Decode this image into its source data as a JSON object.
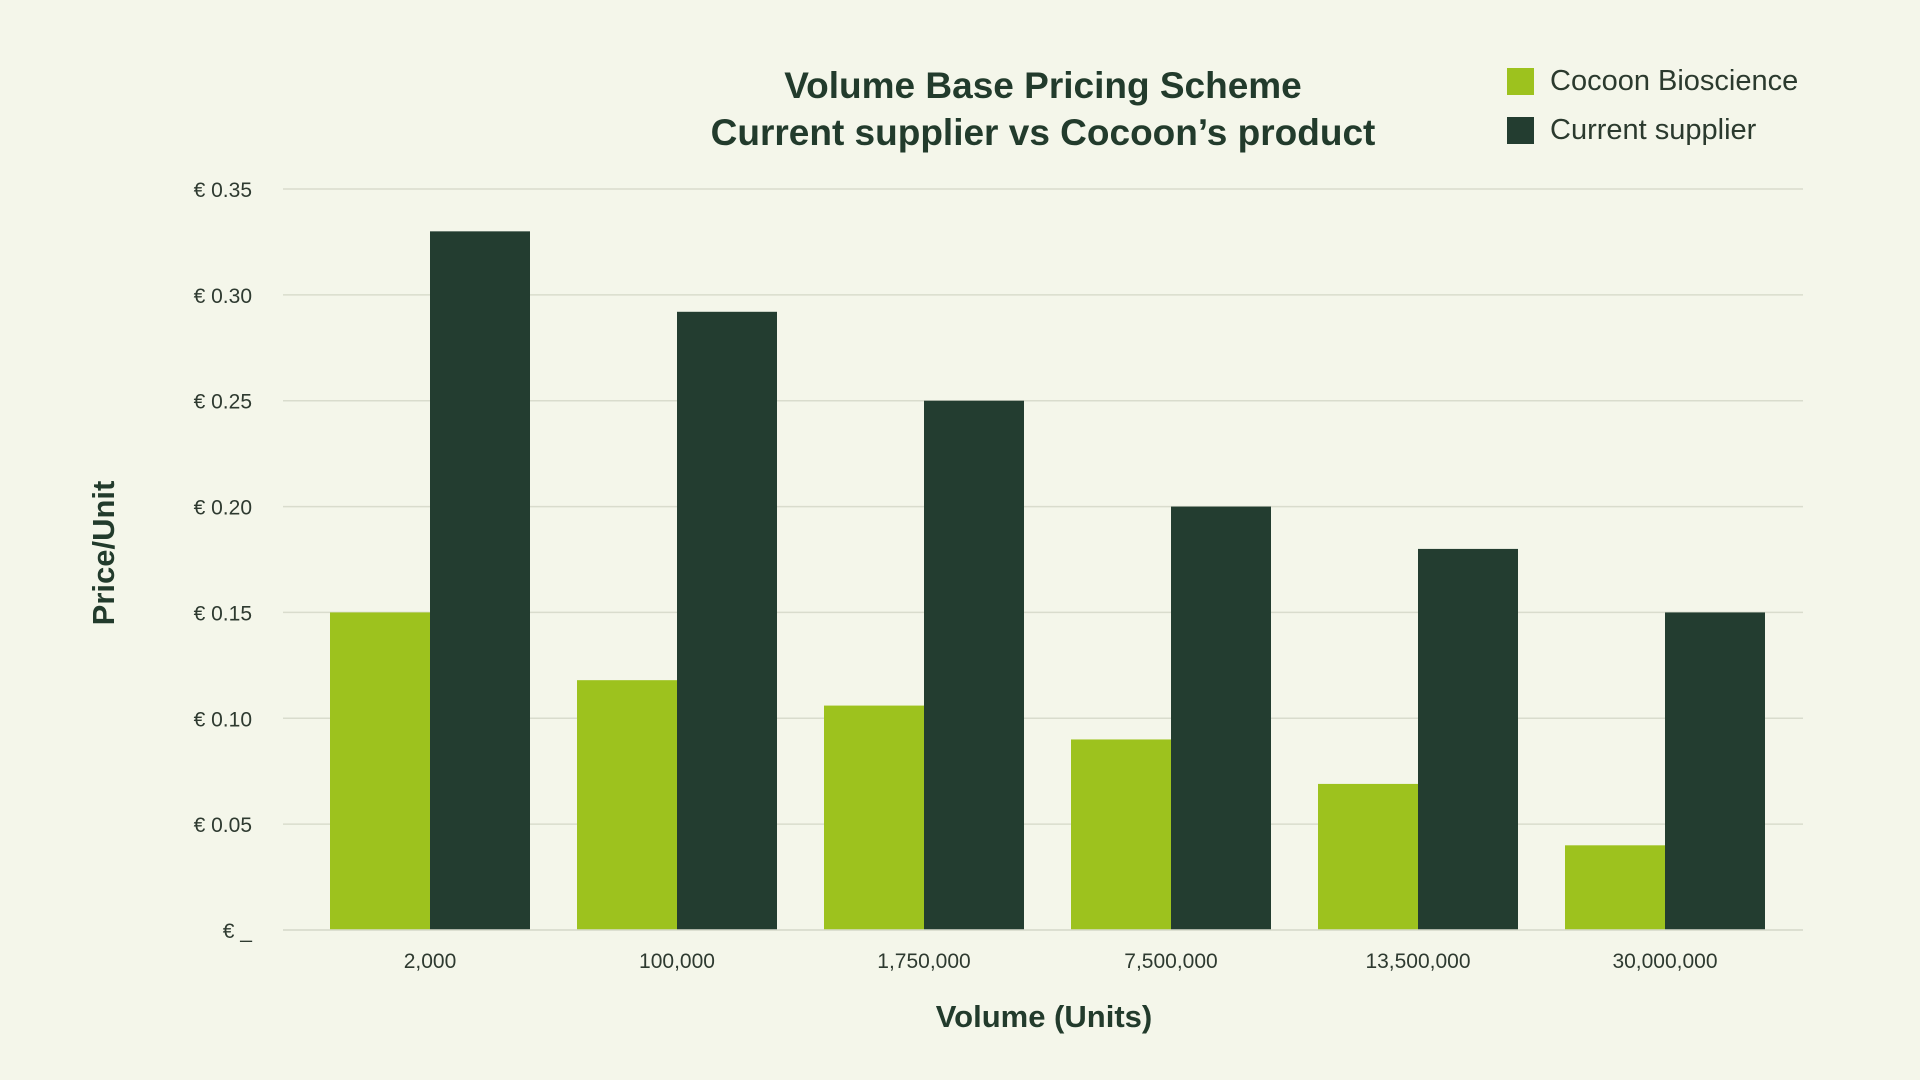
{
  "chart_data": {
    "type": "bar",
    "title": "Volume Base Pricing Scheme",
    "subtitle": "Current supplier vs Cocoon’s product",
    "xlabel": "Volume (Units)",
    "ylabel": "Price/Unit",
    "categories": [
      "2,000",
      "100,000",
      "1,750,000",
      "7,500,000",
      "13,500,000",
      "30,000,000"
    ],
    "series": [
      {
        "name": "Cocoon Bioscience",
        "color": "#9dc21e",
        "values": [
          0.15,
          0.118,
          0.106,
          0.09,
          0.069,
          0.04
        ]
      },
      {
        "name": "Current supplier",
        "color": "#233d30",
        "values": [
          0.33,
          0.292,
          0.25,
          0.2,
          0.18,
          0.15
        ]
      }
    ],
    "ylim": [
      0,
      0.35
    ],
    "yticks": [
      {
        "value": 0,
        "label": "€ _"
      },
      {
        "value": 0.05,
        "label": "€ 0.05"
      },
      {
        "value": 0.1,
        "label": "€ 0.10"
      },
      {
        "value": 0.15,
        "label": "€ 0.15"
      },
      {
        "value": 0.2,
        "label": "€ 0.20"
      },
      {
        "value": 0.25,
        "label": "€ 0.25"
      },
      {
        "value": 0.3,
        "label": "€ 0.30"
      },
      {
        "value": 0.35,
        "label": "€ 0.35"
      }
    ],
    "grid": true,
    "legend_position": "top-right",
    "colors": {
      "background": "#f4f6ea",
      "text": "#223b2c",
      "tick_text": "#2e3a30",
      "grid": "#d9dccd"
    }
  }
}
